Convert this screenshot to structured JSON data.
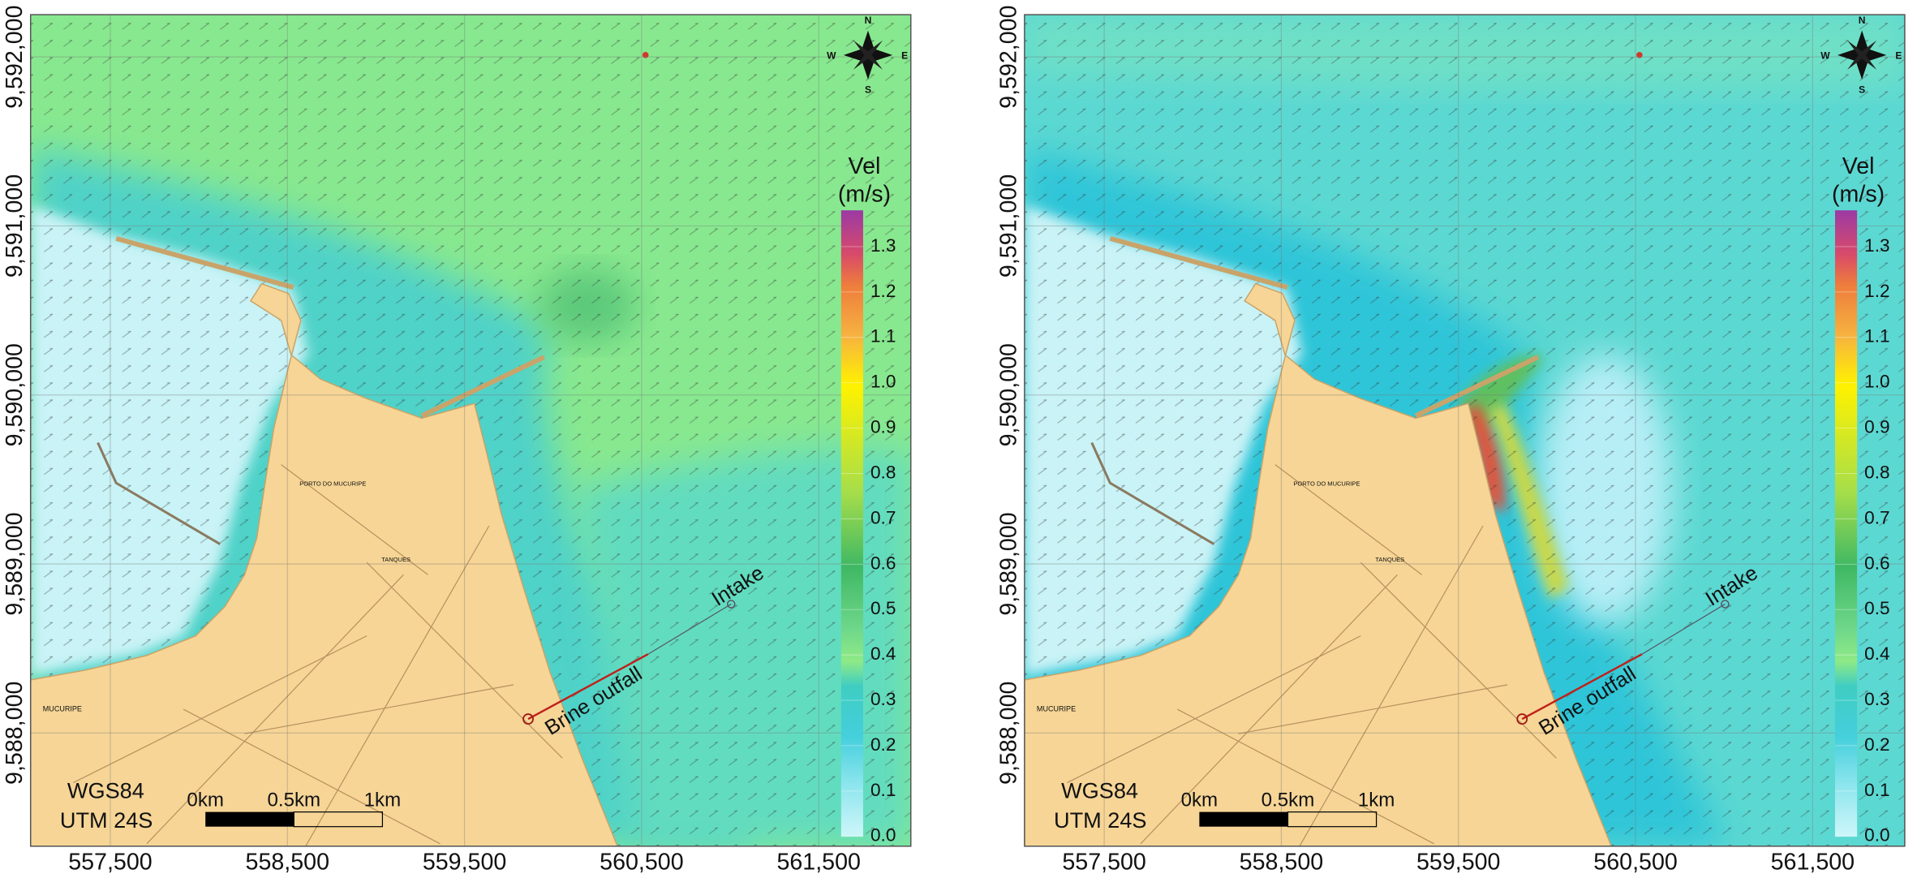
{
  "panels": [
    {
      "xlim": [
        557050,
        562020
      ],
      "ylim": [
        9587330,
        9592250
      ],
      "xticks": [
        {
          "value": 557500,
          "label": "557,500"
        },
        {
          "value": 558500,
          "label": "558,500"
        },
        {
          "value": 559500,
          "label": "559,500"
        },
        {
          "value": 560500,
          "label": "560,500"
        },
        {
          "value": 561500,
          "label": "561,500"
        }
      ],
      "yticks": [
        {
          "value": 9588000,
          "label": "9,588,000"
        },
        {
          "value": 9589000,
          "label": "9,589,000"
        },
        {
          "value": 9590000,
          "label": "9,590,000"
        },
        {
          "value": 9591000,
          "label": "9,591,000"
        },
        {
          "value": 9592000,
          "label": "9,592,000"
        }
      ],
      "compass": {
        "north": "N",
        "east": "E",
        "south": "S",
        "west": "W"
      },
      "colorbar": {
        "title": "Vel",
        "unit": "(m/s)",
        "lim": [
          0,
          1.38
        ],
        "ticks": [
          {
            "value": 0,
            "label": "0.0"
          },
          0.1,
          0.2,
          0.3,
          0.4,
          0.5,
          0.6,
          0.7,
          0.8,
          0.9,
          {
            "value": 1,
            "label": "1.0"
          },
          1.1,
          1.2,
          1.3
        ]
      },
      "annotations": {
        "intake": "Intake",
        "outfall": "Brine outfall"
      },
      "places": {
        "port": "PORTO DO MUCURIPE",
        "tanks": "TANQUES",
        "district": "MUCURIPE"
      },
      "crs": [
        "WGS84",
        "UTM 24S"
      ],
      "scale_bar": [
        "0km",
        "0.5km",
        "1km"
      ]
    },
    {
      "xlim": [
        557050,
        562020
      ],
      "ylim": [
        9587330,
        9592250
      ],
      "xticks": [
        {
          "value": 557500,
          "label": "557,500"
        },
        {
          "value": 558500,
          "label": "558,500"
        },
        {
          "value": 559500,
          "label": "559,500"
        },
        {
          "value": 560500,
          "label": "560,500"
        },
        {
          "value": 561500,
          "label": "561,500"
        }
      ],
      "yticks": [
        {
          "value": 9588000,
          "label": "9,588,000"
        },
        {
          "value": 9589000,
          "label": "9,589,000"
        },
        {
          "value": 9590000,
          "label": "9,590,000"
        },
        {
          "value": 9591000,
          "label": "9,591,000"
        },
        {
          "value": 9592000,
          "label": "9,592,000"
        }
      ],
      "compass": {
        "north": "N",
        "east": "E",
        "south": "S",
        "west": "W"
      },
      "colorbar": {
        "title": "Vel",
        "unit": "(m/s)",
        "lim": [
          0,
          1.38
        ],
        "ticks": [
          {
            "value": 0,
            "label": "0.0"
          },
          0.1,
          0.2,
          0.3,
          0.4,
          0.5,
          0.6,
          0.7,
          0.8,
          0.9,
          {
            "value": 1,
            "label": "1.0"
          },
          1.1,
          1.2,
          1.3
        ]
      },
      "annotations": {
        "intake": "Intake",
        "outfall": "Brine outfall"
      },
      "places": {
        "port": "PORTO DO MUCURIPE",
        "tanks": "TANQUES",
        "district": "MUCURIPE"
      },
      "crs": [
        "WGS84",
        "UTM 24S"
      ],
      "scale_bar": [
        "0km",
        "0.5km",
        "1km"
      ]
    }
  ]
}
